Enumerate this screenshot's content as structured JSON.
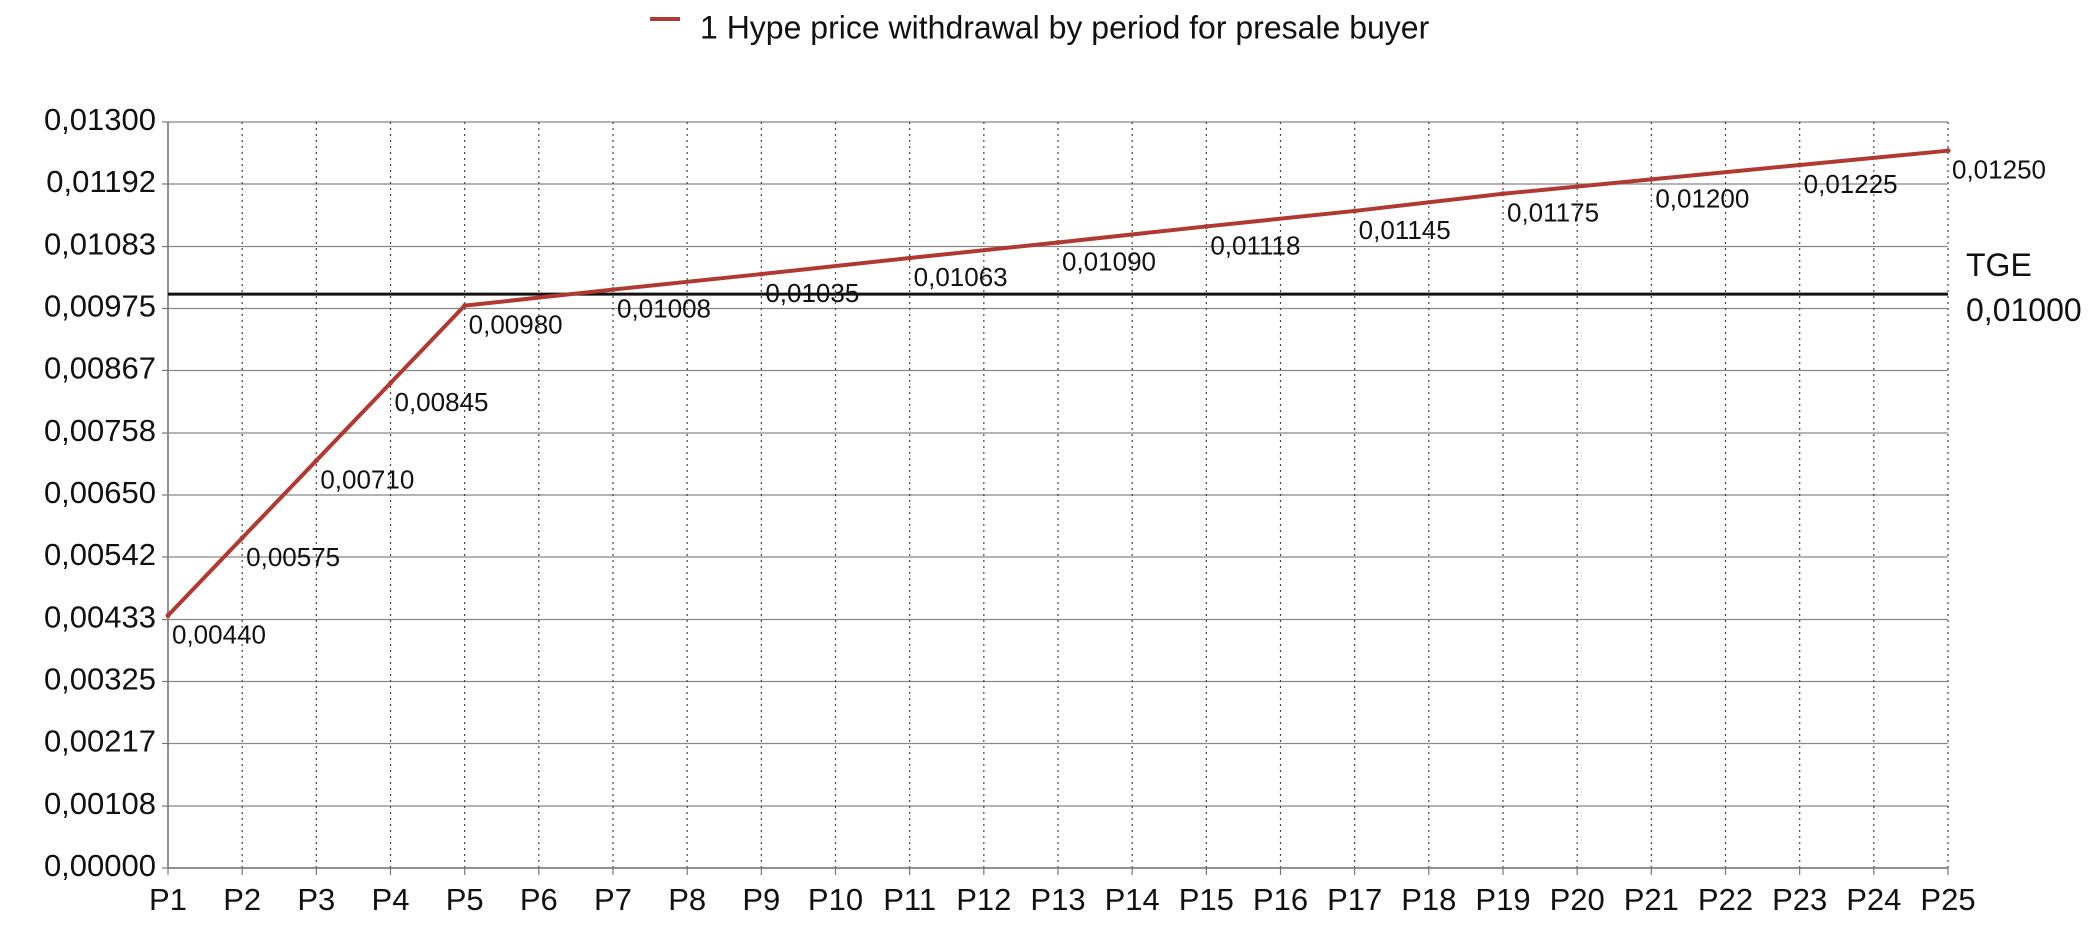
{
  "chart_data": {
    "type": "line",
    "title": "",
    "xlabel": "",
    "ylabel": "",
    "legend": {
      "placement": "top-center",
      "entries": [
        "1 Hype price withdrawal by period for presale buyer"
      ]
    },
    "categories": [
      "P1",
      "P2",
      "P3",
      "P4",
      "P5",
      "P6",
      "P7",
      "P8",
      "P9",
      "P10",
      "P11",
      "P12",
      "P13",
      "P14",
      "P15",
      "P16",
      "P17",
      "P18",
      "P19",
      "P20",
      "P21",
      "P22",
      "P23",
      "P24",
      "P25"
    ],
    "series": [
      {
        "name": "1 Hype price withdrawal by period for presale buyer",
        "color": "#b03a32",
        "points": [
          {
            "category": "P1",
            "value": 0.0044,
            "label": "0,00440"
          },
          {
            "category": "P2",
            "value": 0.00575,
            "label": "0,00575"
          },
          {
            "category": "P3",
            "value": 0.0071,
            "label": "0,00710"
          },
          {
            "category": "P4",
            "value": 0.00845,
            "label": "0,00845"
          },
          {
            "category": "P5",
            "value": 0.0098,
            "label": "0,00980"
          },
          {
            "category": "P7",
            "value": 0.01008,
            "label": "0,01008"
          },
          {
            "category": "P9",
            "value": 0.01035,
            "label": "0,01035"
          },
          {
            "category": "P11",
            "value": 0.01063,
            "label": "0,01063"
          },
          {
            "category": "P13",
            "value": 0.0109,
            "label": "0,01090"
          },
          {
            "category": "P15",
            "value": 0.01118,
            "label": "0,01118"
          },
          {
            "category": "P17",
            "value": 0.01145,
            "label": "0,01145"
          },
          {
            "category": "P19",
            "value": 0.01175,
            "label": "0,01175"
          },
          {
            "category": "P21",
            "value": 0.012,
            "label": "0,01200"
          },
          {
            "category": "P23",
            "value": 0.01225,
            "label": "0,01225"
          },
          {
            "category": "P25",
            "value": 0.0125,
            "label": "0,01250"
          }
        ]
      }
    ],
    "reference_line": {
      "value": 0.01,
      "name": "TGE",
      "label": "0,01000",
      "color": "#111111"
    },
    "ylim": [
      0,
      0.013
    ],
    "y_ticks": [
      {
        "value": 0,
        "label": "0,00000"
      },
      {
        "value": 0.00108,
        "label": "0,00108"
      },
      {
        "value": 0.00217,
        "label": "0,00217"
      },
      {
        "value": 0.00325,
        "label": "0,00325"
      },
      {
        "value": 0.00433,
        "label": "0,00433"
      },
      {
        "value": 0.00542,
        "label": "0,00542"
      },
      {
        "value": 0.0065,
        "label": "0,00650"
      },
      {
        "value": 0.00758,
        "label": "0,00758"
      },
      {
        "value": 0.00867,
        "label": "0,00867"
      },
      {
        "value": 0.00975,
        "label": "0,00975"
      },
      {
        "value": 0.01083,
        "label": "0,01083"
      },
      {
        "value": 0.01192,
        "label": "0,01192"
      },
      {
        "value": 0.013,
        "label": "0,01300"
      }
    ],
    "grid": {
      "horizontal": "solid",
      "vertical": "dotted"
    },
    "colors": {
      "line": "#b03a32",
      "grid": "#888888",
      "axis": "#777777",
      "text": "#111111"
    }
  }
}
